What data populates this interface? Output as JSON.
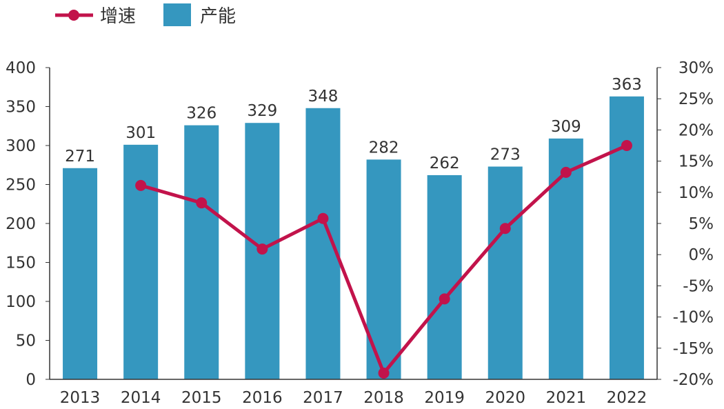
{
  "chart_data": {
    "type": "bar+line",
    "categories": [
      "2013",
      "2014",
      "2015",
      "2016",
      "2017",
      "2018",
      "2019",
      "2020",
      "2021",
      "2022"
    ],
    "series": [
      {
        "name": "产能",
        "type": "bar",
        "axis": "left",
        "color": "#3597bf",
        "values": [
          271,
          301,
          326,
          329,
          348,
          282,
          262,
          273,
          309,
          363
        ]
      },
      {
        "name": "增速",
        "type": "line",
        "axis": "right",
        "color": "#c2134b",
        "unit": "%",
        "values": [
          null,
          11.1,
          8.3,
          0.9,
          5.8,
          -19.0,
          -7.1,
          4.2,
          13.2,
          17.5
        ]
      }
    ],
    "left_axis": {
      "ylim": [
        0,
        400
      ],
      "ticks": [
        "0",
        "50",
        "100",
        "150",
        "200",
        "250",
        "300",
        "350",
        "400"
      ]
    },
    "right_axis": {
      "ylim": [
        -20,
        30
      ],
      "ticks": [
        "-20%",
        "-15%",
        "-10%",
        "-5%",
        "0%",
        "5%",
        "10%",
        "15%",
        "20%",
        "25%",
        "30%"
      ]
    },
    "legend": {
      "position": "top-left",
      "entries": [
        "增速",
        "产能"
      ]
    },
    "data_labels": [
      "271",
      "301",
      "326",
      "329",
      "348",
      "282",
      "262",
      "273",
      "309",
      "363"
    ],
    "grid": false
  }
}
